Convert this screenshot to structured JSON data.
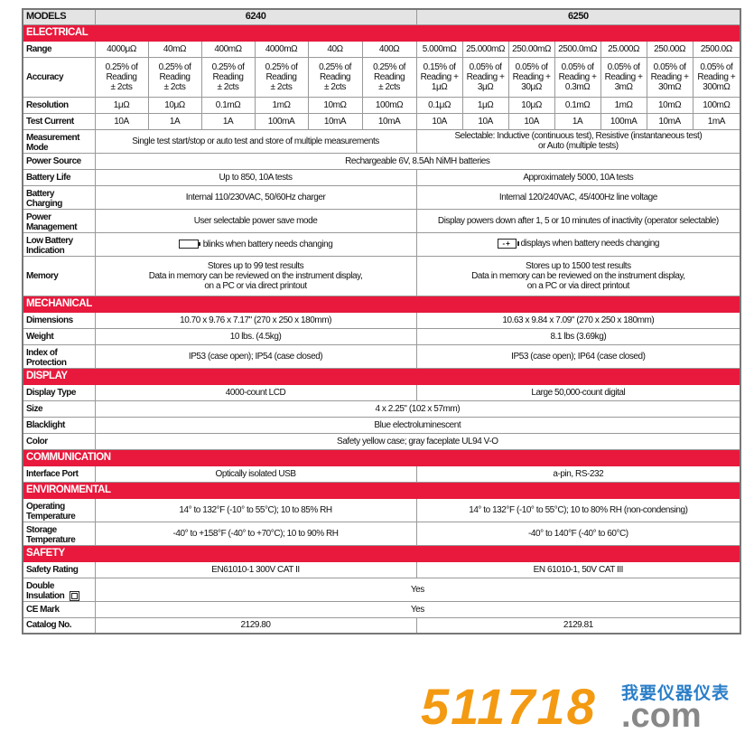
{
  "models": {
    "label": "MODELS",
    "model_a": "6240",
    "model_b": "6250"
  },
  "colors": {
    "section_red": "#e8193c",
    "header_gray": "#e4e4e4",
    "logo_orange": "#f39a12",
    "logo_blue": "#2a7ec8"
  },
  "sections": [
    {
      "title": "ELECTRICAL",
      "rows": [
        {
          "label": "Range",
          "cells": [
            {
              "text": "4000μΩ",
              "span": 1
            },
            {
              "text": "40mΩ",
              "span": 1
            },
            {
              "text": "400mΩ",
              "span": 1
            },
            {
              "text": "4000mΩ",
              "span": 1
            },
            {
              "text": "40Ω",
              "span": 1
            },
            {
              "text": "400Ω",
              "span": 1
            },
            {
              "text": "5.000mΩ",
              "span": 1
            },
            {
              "text": "25.000mΩ",
              "span": 1
            },
            {
              "text": "250.00mΩ",
              "span": 1
            },
            {
              "text": "2500.0mΩ",
              "span": 1
            },
            {
              "text": "25.000Ω",
              "span": 1
            },
            {
              "text": "250.00Ω",
              "span": 1
            },
            {
              "text": "2500.0Ω",
              "span": 1
            }
          ]
        },
        {
          "label": "Accuracy",
          "cells": [
            {
              "text": "0.25% of\nReading\n± 2cts",
              "span": 1
            },
            {
              "text": "0.25% of\nReading\n± 2cts",
              "span": 1
            },
            {
              "text": "0.25% of\nReading\n± 2cts",
              "span": 1
            },
            {
              "text": "0.25% of\nReading\n± 2cts",
              "span": 1
            },
            {
              "text": "0.25% of\nReading\n± 2cts",
              "span": 1
            },
            {
              "text": "0.25% of\nReading\n± 2cts",
              "span": 1
            },
            {
              "text": "0.15% of\nReading +\n1μΩ",
              "span": 1
            },
            {
              "text": "0.05% of\nReading +\n3μΩ",
              "span": 1
            },
            {
              "text": "0.05% of\nReading +\n30μΩ",
              "span": 1
            },
            {
              "text": "0.05% of\nReading +\n0.3mΩ",
              "span": 1
            },
            {
              "text": "0.05% of\nReading +\n3mΩ",
              "span": 1
            },
            {
              "text": "0.05% of\nReading +\n30mΩ",
              "span": 1
            },
            {
              "text": "0.05% of\nReading +\n300mΩ",
              "span": 1
            }
          ]
        },
        {
          "label": "Resolution",
          "cells": [
            {
              "text": "1μΩ",
              "span": 1
            },
            {
              "text": "10μΩ",
              "span": 1
            },
            {
              "text": "0.1mΩ",
              "span": 1
            },
            {
              "text": "1mΩ",
              "span": 1
            },
            {
              "text": "10mΩ",
              "span": 1
            },
            {
              "text": "100mΩ",
              "span": 1
            },
            {
              "text": "0.1μΩ",
              "span": 1
            },
            {
              "text": "1μΩ",
              "span": 1
            },
            {
              "text": "10μΩ",
              "span": 1
            },
            {
              "text": "0.1mΩ",
              "span": 1
            },
            {
              "text": "1mΩ",
              "span": 1
            },
            {
              "text": "10mΩ",
              "span": 1
            },
            {
              "text": "100mΩ",
              "span": 1
            }
          ]
        },
        {
          "label": "Test Current",
          "cells": [
            {
              "text": "10A",
              "span": 1
            },
            {
              "text": "1A",
              "span": 1
            },
            {
              "text": "1A",
              "span": 1
            },
            {
              "text": "100mA",
              "span": 1
            },
            {
              "text": "10mA",
              "span": 1
            },
            {
              "text": "10mA",
              "span": 1
            },
            {
              "text": "10A",
              "span": 1
            },
            {
              "text": "10A",
              "span": 1
            },
            {
              "text": "10A",
              "span": 1
            },
            {
              "text": "1A",
              "span": 1
            },
            {
              "text": "100mA",
              "span": 1
            },
            {
              "text": "10mA",
              "span": 1
            },
            {
              "text": "1mA",
              "span": 1
            }
          ]
        },
        {
          "label": "Measurement\nMode",
          "cells": [
            {
              "text": "Single test start/stop or auto test and store of multiple measurements",
              "span": 6
            },
            {
              "text": "Selectable: Inductive (continuous test), Resistive (instantaneous test)\nor Auto (multiple tests)",
              "span": 7
            }
          ]
        },
        {
          "label": "Power Source",
          "cells": [
            {
              "text": "Rechargeable 6V, 8.5Ah NiMH batteries",
              "span": 13
            }
          ]
        },
        {
          "label": "Battery Life",
          "cells": [
            {
              "text": "Up to 850, 10A tests",
              "span": 6
            },
            {
              "text": "Approximately 5000, 10A tests",
              "span": 7
            }
          ]
        },
        {
          "label": "Battery\nCharging",
          "cells": [
            {
              "text": "Internal 110/230VAC, 50/60Hz charger",
              "span": 6
            },
            {
              "text": "Internal 120/240VAC, 45/400Hz line voltage",
              "span": 7
            }
          ]
        },
        {
          "label": "Power\nManagement",
          "cells": [
            {
              "text": "User selectable power save mode",
              "span": 6
            },
            {
              "text": "Display powers down after 1, 5 or 10 minutes of inactivity (operator selectable)",
              "span": 7
            }
          ]
        },
        {
          "label": "Low Battery\nIndication",
          "cells": [
            {
              "text": "blinks when battery needs changing",
              "span": 6,
              "icon": "battery-empty-icon"
            },
            {
              "text": "displays when battery needs changing",
              "span": 7,
              "icon": "battery-minus-plus-icon"
            }
          ]
        },
        {
          "label": "Memory",
          "cells": [
            {
              "text": "Stores up to 99 test results\nData in memory can be reviewed on the instrument display,\non a PC or via direct printout",
              "span": 6
            },
            {
              "text": "Stores up to 1500 test results\nData in memory can be reviewed on the instrument display,\non a PC or via direct printout",
              "span": 7
            }
          ]
        }
      ]
    },
    {
      "title": "MECHANICAL",
      "rows": [
        {
          "label": "Dimensions",
          "cells": [
            {
              "text": "10.70 x 9.76 x 7.17\" (270 x 250 x 180mm)",
              "span": 6
            },
            {
              "text": "10.63 x 9.84 x 7.09\" (270 x 250 x 180mm)",
              "span": 7
            }
          ]
        },
        {
          "label": "Weight",
          "cells": [
            {
              "text": "10 lbs. (4.5kg)",
              "span": 6
            },
            {
              "text": "8.1 lbs (3.69kg)",
              "span": 7
            }
          ]
        },
        {
          "label": "Index of\nProtection",
          "cells": [
            {
              "text": "IP53 (case open); IP54 (case closed)",
              "span": 6
            },
            {
              "text": "IP53 (case open); IP64 (case closed)",
              "span": 7
            }
          ]
        }
      ]
    },
    {
      "title": "DISPLAY",
      "rows": [
        {
          "label": "Display Type",
          "cells": [
            {
              "text": "4000-count LCD",
              "span": 6
            },
            {
              "text": "Large 50,000-count digital",
              "span": 7
            }
          ]
        },
        {
          "label": "Size",
          "cells": [
            {
              "text": "4 x 2.25\" (102 x 57mm)",
              "span": 13
            }
          ]
        },
        {
          "label": "Blacklight",
          "cells": [
            {
              "text": "Blue electroluminescent",
              "span": 13
            }
          ]
        },
        {
          "label": "Color",
          "cells": [
            {
              "text": "Safety yellow case; gray faceplate UL94 V-O",
              "span": 13
            }
          ]
        }
      ]
    },
    {
      "title": "COMMUNICATION",
      "rows": [
        {
          "label": "Interface Port",
          "cells": [
            {
              "text": "Optically isolated USB",
              "span": 6
            },
            {
              "text": "a-pin, RS-232",
              "span": 7
            }
          ]
        }
      ]
    },
    {
      "title": "ENVIRONMENTAL",
      "rows": [
        {
          "label": "Operating\nTemperature",
          "cells": [
            {
              "text": "14° to 132°F (-10° to 55°C); 10 to 85% RH",
              "span": 6
            },
            {
              "text": "14° to 132°F (-10° to 55°C); 10 to 80% RH (non-condensing)",
              "span": 7
            }
          ]
        },
        {
          "label": "Storage\nTemperature",
          "cells": [
            {
              "text": "-40° to +158°F (-40° to +70°C); 10 to 90% RH",
              "span": 6
            },
            {
              "text": "-40° to 140°F (-40° to 60°C)",
              "span": 7
            }
          ]
        }
      ]
    },
    {
      "title": "SAFETY",
      "rows": [
        {
          "label": "Safety Rating",
          "cells": [
            {
              "text": "EN61010-1 300V CAT II",
              "span": 6
            },
            {
              "text": "EN 61010-1, 50V CAT III",
              "span": 7
            }
          ]
        },
        {
          "label": "Double\nInsulation",
          "label_icon": "double-insulation-icon",
          "cells": [
            {
              "text": "Yes",
              "span": 13
            }
          ]
        },
        {
          "label": "CE Mark",
          "cells": [
            {
              "text": "Yes",
              "span": 13
            }
          ]
        },
        {
          "label": "Catalog No.",
          "cells": [
            {
              "text": "2129.80",
              "span": 6
            },
            {
              "text": "2129.81",
              "span": 7
            }
          ]
        }
      ]
    }
  ],
  "logo": {
    "number": "511718",
    "chinese": "我要仪器仪表",
    "domain": ".com"
  }
}
